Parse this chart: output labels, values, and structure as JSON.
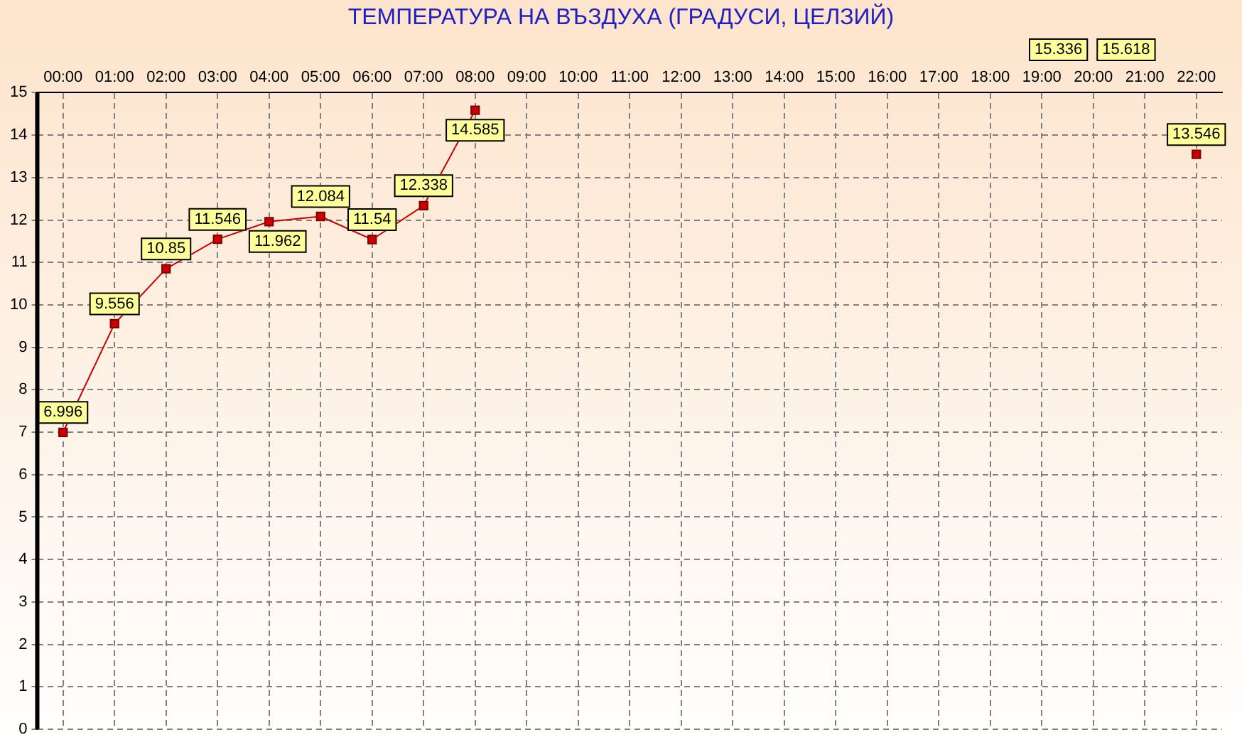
{
  "chart_data": {
    "type": "line",
    "title": "ТЕМПЕРАТУРА НА ВЪЗДУХА  (ГРАДУСИ, ЦЕЛЗИЙ)",
    "categories": [
      "00:00",
      "01:00",
      "02:00",
      "03:00",
      "04:00",
      "05:00",
      "06:00",
      "07:00",
      "08:00",
      "09:00",
      "10:00",
      "11:00",
      "12:00",
      "13:00",
      "14:00",
      "15:00",
      "16:00",
      "17:00",
      "18:00",
      "19:00",
      "20:00",
      "21:00",
      "22:00"
    ],
    "series": [
      {
        "color": "#cc0000",
        "values": [
          6.996,
          9.556,
          10.85,
          11.546,
          11.962,
          12.084,
          11.54,
          12.338,
          14.585,
          null,
          null,
          null,
          null,
          null,
          null,
          null,
          null,
          null,
          null,
          null,
          null,
          null,
          13.546
        ]
      }
    ],
    "annotations": [
      "15.336",
      "15.618"
    ],
    "ylim": [
      0,
      15
    ],
    "yticks": [
      0,
      1,
      2,
      3,
      4,
      5,
      6,
      7,
      8,
      9,
      10,
      11,
      12,
      13,
      14,
      15
    ],
    "grid": true,
    "marker": "square",
    "line_style": "solid",
    "data_labels": true,
    "legend": false
  }
}
